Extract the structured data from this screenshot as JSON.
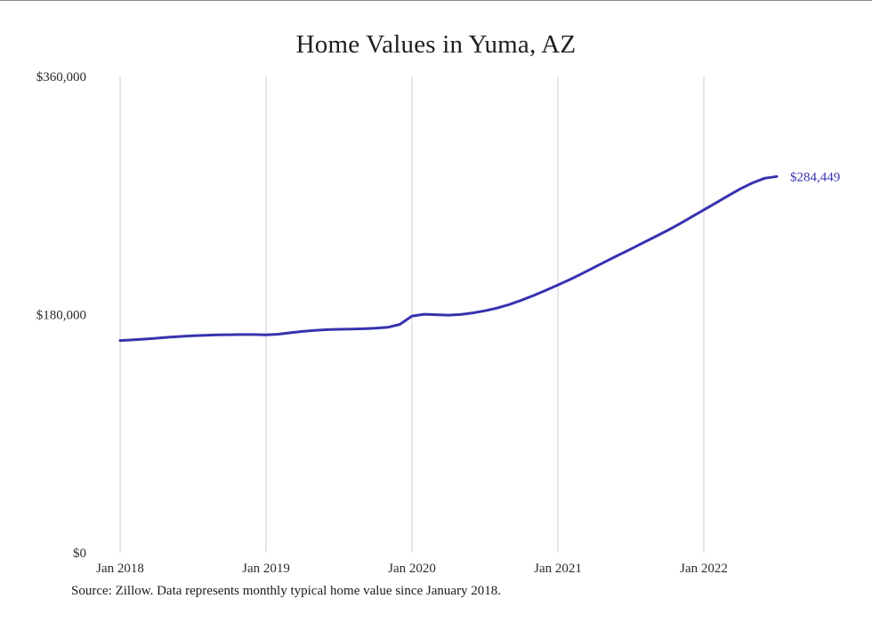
{
  "chart": {
    "title": "Home Values in Yuma, AZ",
    "source_note": "Source: Zillow. Data represents monthly typical home value since January 2018.",
    "end_label": "$284,449",
    "line_color": "#3733b0",
    "grid_color": "#cccccc",
    "text_color": "#2b2b2b"
  },
  "chart_data": {
    "type": "line",
    "title": "Home Values in Yuma, AZ",
    "xlabel": "",
    "ylabel": "",
    "ylim": [
      0,
      360000
    ],
    "grid": "vertical-only",
    "legend": "none",
    "source": "Zillow",
    "end_label": "$284,449",
    "y_ticks": [
      {
        "value": 0,
        "label": "$0"
      },
      {
        "value": 180000,
        "label": "$180,000"
      },
      {
        "value": 360000,
        "label": "$360,000"
      }
    ],
    "x_ticks": [
      {
        "index": 0,
        "label": "Jan 2018"
      },
      {
        "index": 12,
        "label": "Jan 2019"
      },
      {
        "index": 24,
        "label": "Jan 2020"
      },
      {
        "index": 36,
        "label": "Jan 2021"
      },
      {
        "index": 48,
        "label": "Jan 2022"
      }
    ],
    "x": [
      "Jan 2018",
      "Feb 2018",
      "Mar 2018",
      "Apr 2018",
      "May 2018",
      "Jun 2018",
      "Jul 2018",
      "Aug 2018",
      "Sep 2018",
      "Oct 2018",
      "Nov 2018",
      "Dec 2018",
      "Jan 2019",
      "Feb 2019",
      "Mar 2019",
      "Apr 2019",
      "May 2019",
      "Jun 2019",
      "Jul 2019",
      "Aug 2019",
      "Sep 2019",
      "Oct 2019",
      "Nov 2019",
      "Dec 2019",
      "Jan 2020",
      "Feb 2020",
      "Mar 2020",
      "Apr 2020",
      "May 2020",
      "Jun 2020",
      "Jul 2020",
      "Aug 2020",
      "Sep 2020",
      "Oct 2020",
      "Nov 2020",
      "Dec 2020",
      "Jan 2021",
      "Feb 2021",
      "Mar 2021",
      "Apr 2021",
      "May 2021",
      "Jun 2021",
      "Jul 2021",
      "Aug 2021",
      "Sep 2021",
      "Oct 2021",
      "Nov 2021",
      "Dec 2021",
      "Jan 2022",
      "Feb 2022",
      "Mar 2022",
      "Apr 2022",
      "May 2022",
      "Jun 2022",
      "Jul 2022"
    ],
    "values": [
      160400,
      160900,
      161500,
      162200,
      162900,
      163500,
      164000,
      164400,
      164700,
      164800,
      164900,
      164900,
      164700,
      165200,
      166300,
      167300,
      168100,
      168600,
      168900,
      169100,
      169300,
      169700,
      170400,
      172600,
      178900,
      180300,
      179900,
      179600,
      180100,
      181300,
      182900,
      185000,
      187600,
      190900,
      194500,
      198400,
      202400,
      206600,
      211100,
      215800,
      220500,
      225100,
      229600,
      234300,
      238900,
      243600,
      248600,
      253900,
      259200,
      264500,
      269900,
      275100,
      279600,
      283100,
      284449
    ]
  }
}
